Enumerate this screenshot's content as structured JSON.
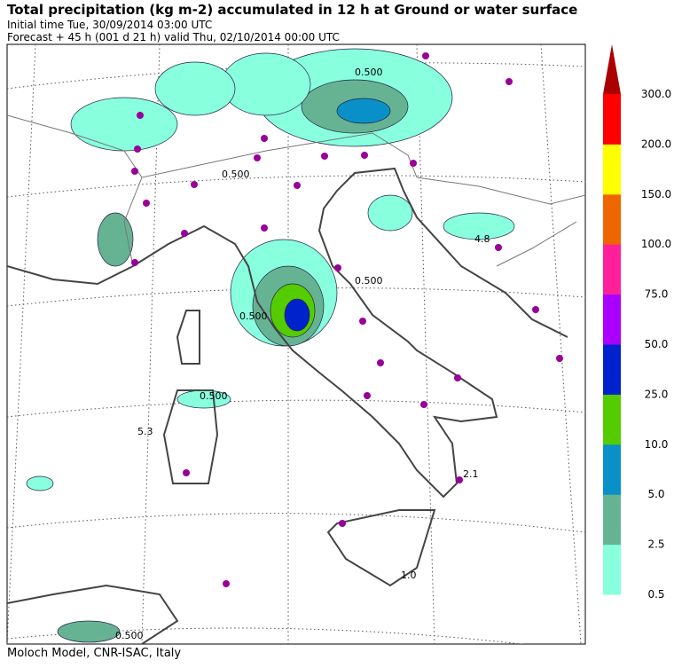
{
  "header": {
    "title": "Total precipitation (kg m-2) accumulated in  12 h at Ground or water surface",
    "initial_time": "Initial time  Tue, 30/09/2014  03:00 UTC",
    "forecast": "Forecast  +  45 h  (001 d 21 h)  valid Thu, 02/10/2014 00:00 UTC"
  },
  "colorbar": {
    "levels": [
      "0.5",
      "2.5",
      "5.0",
      "10.0",
      "25.0",
      "50.0",
      "75.0",
      "100.0",
      "150.0",
      "200.0",
      "300.0"
    ],
    "colors": [
      "#88ffdd",
      "#66b394",
      "#0a90c8",
      "#55cc00",
      "#0022cc",
      "#aa00ff",
      "#ff1f9a",
      "#ee6600",
      "#ffff00",
      "#ff0000"
    ],
    "arrow_color": "#aa0000"
  },
  "contour_labels": [
    "0.500",
    "0.500",
    "0.500",
    "0.500",
    "0.500",
    "0.500",
    "4.8",
    "5.3",
    "2.1",
    "1.0"
  ],
  "footer": "Moloch Model, CNR-ISAC, Italy"
}
